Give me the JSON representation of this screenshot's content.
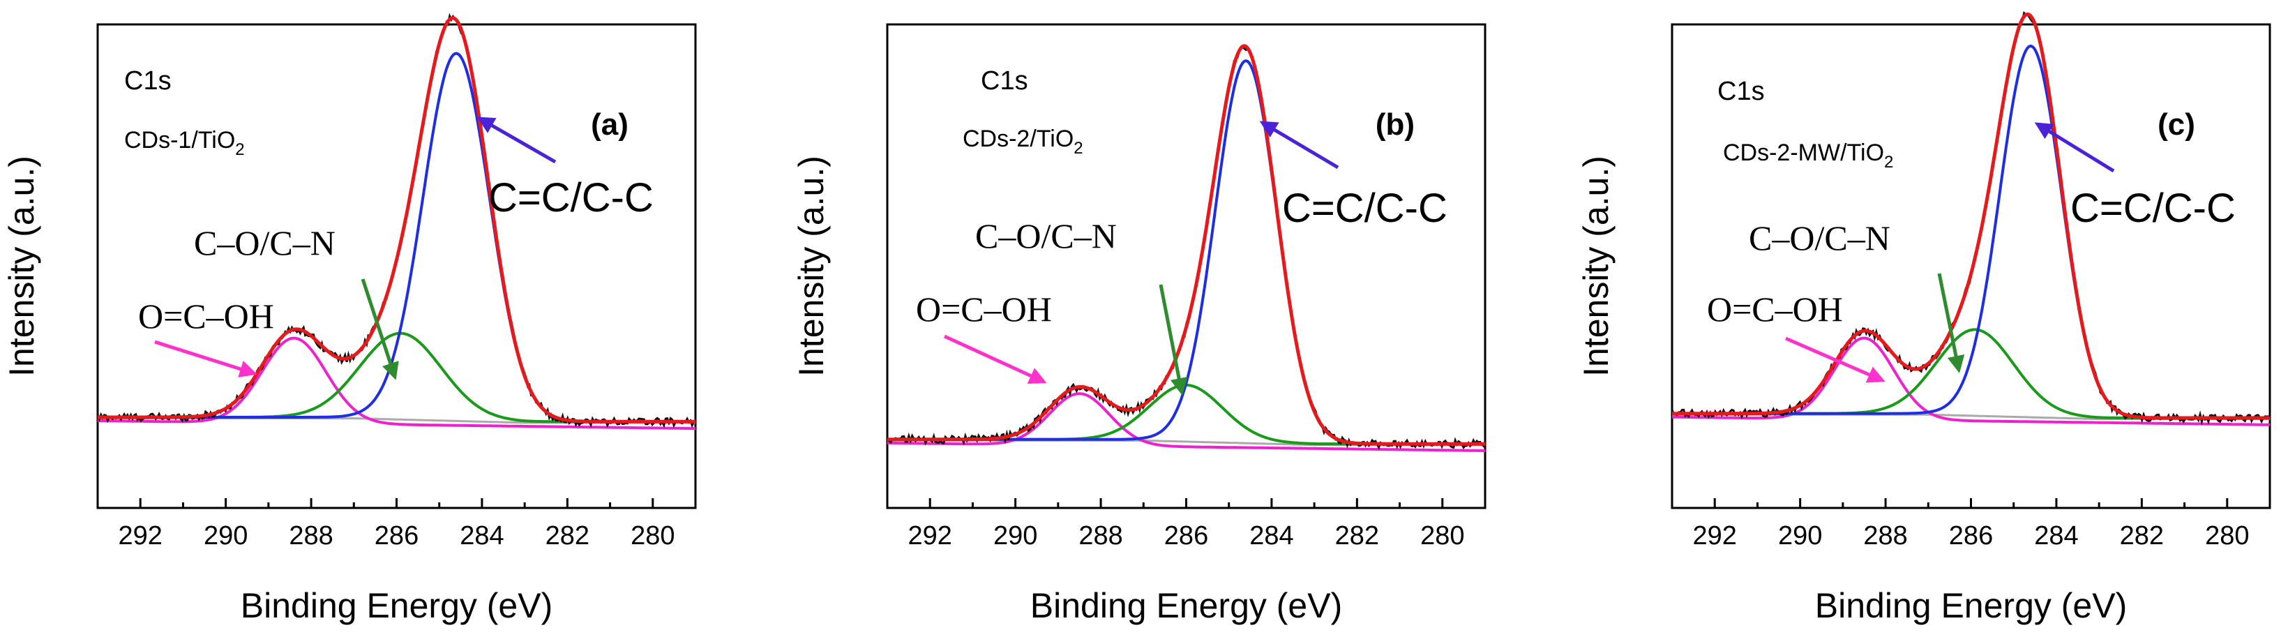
{
  "chart_data": [
    {
      "type": "line",
      "panel_label": "(a)",
      "title_lines": [
        "C1s",
        "CDs-1/TiO",
        "2"
      ],
      "xlabel": "Binding Energy (eV)",
      "ylabel": "Intensity (a.u.)",
      "xlim": [
        293,
        279
      ],
      "xticks": [
        "292",
        "290",
        "288",
        "286",
        "284",
        "282",
        "280"
      ],
      "baseline": 0.12,
      "peaks": [
        {
          "name": "O=C–OH",
          "center": 288.4,
          "height": 0.23,
          "width": 0.75
        },
        {
          "name": "C–O/C–N",
          "center": 285.9,
          "height": 0.23,
          "width": 0.95
        },
        {
          "name": "C=C/C-C",
          "center": 284.6,
          "height": 0.99,
          "width": 0.78
        }
      ],
      "annotations": {
        "ocooh": "O=C–OH",
        "con": "C–O/C–N",
        "cc": "C=C/C-C"
      },
      "series": [
        {
          "name": "experimental",
          "color": "#111111"
        },
        {
          "name": "envelope fit",
          "color": "#e41a1c"
        },
        {
          "name": "C=C/C-C",
          "color": "#1f2ee0"
        },
        {
          "name": "C–O/C–N",
          "color": "#1a9a1a"
        },
        {
          "name": "O=C–OH",
          "color": "#ee22cc"
        },
        {
          "name": "background",
          "color": "#aaaaaa"
        }
      ]
    },
    {
      "type": "line",
      "panel_label": "(b)",
      "title_lines": [
        "C1s",
        "CDs-2/TiO",
        "2"
      ],
      "xlabel": "Binding Energy (eV)",
      "ylabel": "Intensity (a.u.)",
      "xlim": [
        293,
        279
      ],
      "xticks": [
        "292",
        "290",
        "288",
        "286",
        "284",
        "282",
        "280"
      ],
      "baseline": 0.06,
      "peaks": [
        {
          "name": "O=C–OH",
          "center": 288.5,
          "height": 0.14,
          "width": 0.7
        },
        {
          "name": "C–O/C–N",
          "center": 286.0,
          "height": 0.15,
          "width": 0.85
        },
        {
          "name": "C=C/C-C",
          "center": 284.6,
          "height": 1.03,
          "width": 0.72
        }
      ],
      "annotations": {
        "ocooh": "O=C–OH",
        "con": "C–O/C–N",
        "cc": "C=C/C-C"
      },
      "series": [
        {
          "name": "experimental",
          "color": "#111111"
        },
        {
          "name": "envelope fit",
          "color": "#e41a1c"
        },
        {
          "name": "C=C/C-C",
          "color": "#1f2ee0"
        },
        {
          "name": "C–O/C–N",
          "color": "#1a9a1a"
        },
        {
          "name": "O=C–OH",
          "color": "#ee22cc"
        },
        {
          "name": "background",
          "color": "#aaaaaa"
        }
      ]
    },
    {
      "type": "line",
      "panel_label": "(c)",
      "title_lines": [
        "C1s",
        "CDs-2-MW/TiO",
        "2"
      ],
      "xlabel": "Binding Energy (eV)",
      "ylabel": "Intensity (a.u.)",
      "xlim": [
        293,
        279
      ],
      "xticks": [
        "292",
        "290",
        "288",
        "286",
        "284",
        "282",
        "280"
      ],
      "baseline": 0.13,
      "peaks": [
        {
          "name": "O=C–OH",
          "center": 288.5,
          "height": 0.22,
          "width": 0.7
        },
        {
          "name": "C–O/C–N",
          "center": 285.9,
          "height": 0.23,
          "width": 0.9
        },
        {
          "name": "C=C/C-C",
          "center": 284.6,
          "height": 1.0,
          "width": 0.72
        }
      ],
      "annotations": {
        "ocooh": "O=C–OH",
        "con": "C–O/C–N",
        "cc": "C=C/C-C"
      },
      "series": [
        {
          "name": "experimental",
          "color": "#111111"
        },
        {
          "name": "envelope fit",
          "color": "#e41a1c"
        },
        {
          "name": "C=C/C-C",
          "color": "#1f2ee0"
        },
        {
          "name": "C–O/C–N",
          "color": "#1a9a1a"
        },
        {
          "name": "O=C–OH",
          "color": "#ee22cc"
        },
        {
          "name": "background",
          "color": "#aaaaaa"
        }
      ]
    }
  ],
  "colors": {
    "experimental": "#111111",
    "envelope": "#e41a1c",
    "main_peak": "#1f2ee0",
    "co_peak": "#1a9a1a",
    "cooh_peak": "#ee22cc",
    "background": "#aaaaaa",
    "arrow_cc": "#4a22d8",
    "arrow_con": "#2e8b2e",
    "arrow_ocooh": "#ff33cc"
  }
}
